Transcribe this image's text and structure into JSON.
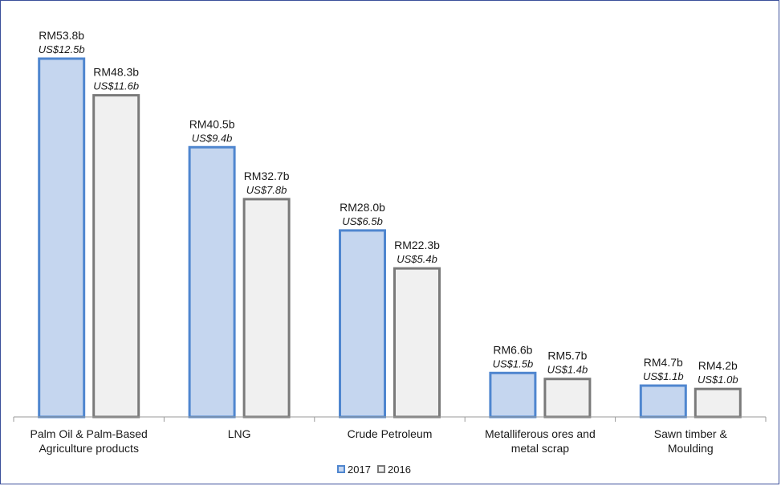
{
  "chart_data": {
    "type": "bar",
    "title": "",
    "xlabel": "",
    "ylabel": "",
    "ylim": [
      0,
      56
    ],
    "categories": [
      [
        "Palm Oil & Palm-Based",
        "Agriculture products"
      ],
      [
        "LNG"
      ],
      [
        "Crude Petroleum"
      ],
      [
        "Metalliferous ores and",
        "metal scrap"
      ],
      [
        "Sawn timber &",
        "Moulding"
      ]
    ],
    "series": [
      {
        "name": "2017",
        "color_fill": "#c5d6ef",
        "color_stroke": "#4f86cf",
        "values": [
          53.8,
          40.5,
          28.0,
          6.6,
          4.7
        ],
        "labels_rm": [
          "RM53.8b",
          "RM40.5b",
          "RM28.0b",
          "RM6.6b",
          "RM4.7b"
        ],
        "labels_us": [
          "US$12.5b",
          "US$9.4b",
          "US$6.5b",
          "US$1.5b",
          "US$1.1b"
        ]
      },
      {
        "name": "2016",
        "color_fill": "#f0f0f0",
        "color_stroke": "#7a7a7a",
        "values": [
          48.3,
          32.7,
          22.3,
          5.7,
          4.2
        ],
        "labels_rm": [
          "RM48.3b",
          "RM32.7b",
          "RM22.3b",
          "RM5.7b",
          "RM4.2b"
        ],
        "labels_us": [
          "US$11.6b",
          "US$7.8b",
          "US$5.4b",
          "US$1.4b",
          "US$1.0b"
        ]
      }
    ],
    "legend": {
      "position": "bottom"
    },
    "grid": false
  }
}
